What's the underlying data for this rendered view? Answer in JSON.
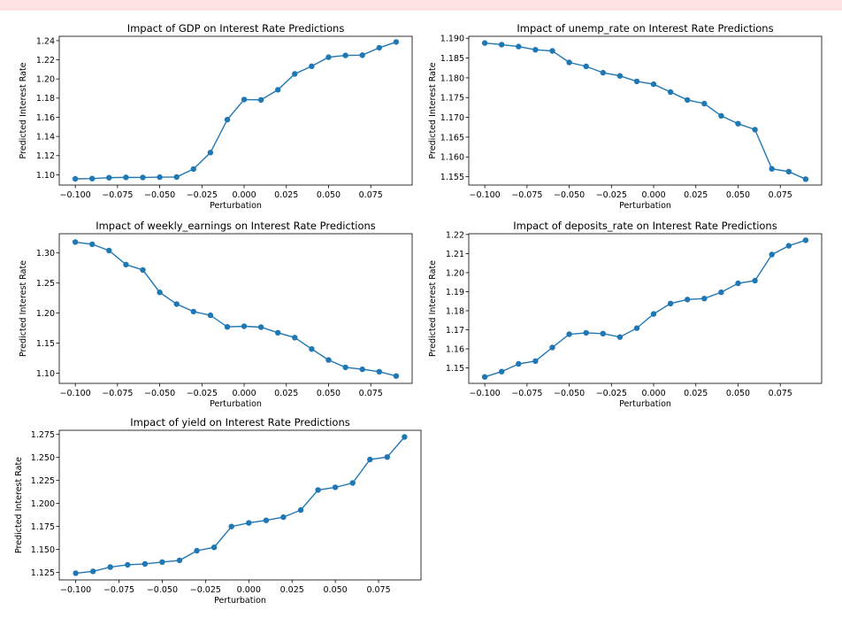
{
  "colors": {
    "line": "#1f77b4",
    "banner": "#fde2e2"
  },
  "chart_data": [
    {
      "type": "line",
      "title": "Impact of GDP on Interest Rate Predictions",
      "xlabel": "Perturbation",
      "ylabel": "Predicted Interest Rate",
      "xlim": [
        -0.1095,
        0.0995
      ],
      "ylim": [
        1.0893,
        1.2445
      ],
      "xticks": [
        "−0.100",
        "−0.075",
        "−0.050",
        "−0.025",
        "0.000",
        "0.025",
        "0.050",
        "0.075"
      ],
      "xtick_values": [
        -0.1,
        -0.075,
        -0.05,
        -0.025,
        0,
        0.025,
        0.05,
        0.075
      ],
      "yticks": [
        "1.10",
        "1.12",
        "1.14",
        "1.16",
        "1.18",
        "1.20",
        "1.22",
        "1.24"
      ],
      "ytick_values": [
        1.1,
        1.12,
        1.14,
        1.16,
        1.18,
        1.2,
        1.22,
        1.24
      ],
      "x": [
        -0.1,
        -0.09,
        -0.08,
        -0.07,
        -0.06,
        -0.05,
        -0.04,
        -0.03,
        -0.02,
        -0.01,
        0.0,
        0.01,
        0.02,
        0.03,
        0.04,
        0.05,
        0.06,
        0.07,
        0.08,
        0.09
      ],
      "y": [
        1.0958,
        1.096,
        1.097,
        1.0973,
        1.0972,
        1.0975,
        1.0977,
        1.106,
        1.1232,
        1.1576,
        1.1785,
        1.1782,
        1.1887,
        1.2052,
        1.2133,
        1.2227,
        1.2245,
        1.2248,
        1.2326,
        1.2386
      ],
      "grid": false,
      "legend": "none"
    },
    {
      "type": "line",
      "title": "Impact of unemp_rate on Interest Rate Predictions",
      "xlabel": "Perturbation",
      "ylabel": "Predicted Interest Rate",
      "xlim": [
        -0.1095,
        0.0995
      ],
      "ylim": [
        1.1529,
        1.1905
      ],
      "xticks": [
        "−0.100",
        "−0.075",
        "−0.050",
        "−0.025",
        "0.000",
        "0.025",
        "0.050",
        "0.075"
      ],
      "xtick_values": [
        -0.1,
        -0.075,
        -0.05,
        -0.025,
        0,
        0.025,
        0.05,
        0.075
      ],
      "yticks": [
        "1.155",
        "1.160",
        "1.165",
        "1.170",
        "1.175",
        "1.180",
        "1.185",
        "1.190"
      ],
      "ytick_values": [
        1.155,
        1.16,
        1.165,
        1.17,
        1.175,
        1.18,
        1.185,
        1.19
      ],
      "x": [
        -0.1,
        -0.09,
        -0.08,
        -0.07,
        -0.06,
        -0.05,
        -0.04,
        -0.03,
        -0.02,
        -0.01,
        0.0,
        0.01,
        0.02,
        0.03,
        0.04,
        0.05,
        0.06,
        0.07,
        0.08,
        0.09
      ],
      "y": [
        1.1888,
        1.1884,
        1.1879,
        1.1871,
        1.1868,
        1.1839,
        1.1829,
        1.1813,
        1.1805,
        1.1791,
        1.1784,
        1.1764,
        1.1744,
        1.1735,
        1.1704,
        1.1684,
        1.1669,
        1.157,
        1.1563,
        1.1544
      ],
      "grid": false,
      "legend": "none"
    },
    {
      "type": "line",
      "title": "Impact of weekly_earnings on Interest Rate Predictions",
      "xlabel": "Perturbation",
      "ylabel": "Predicted Interest Rate",
      "xlim": [
        -0.1095,
        0.0995
      ],
      "ylim": [
        1.083,
        1.332
      ],
      "xticks": [
        "−0.100",
        "−0.075",
        "−0.050",
        "−0.025",
        "0.000",
        "0.025",
        "0.050",
        "0.075"
      ],
      "xtick_values": [
        -0.1,
        -0.075,
        -0.05,
        -0.025,
        0,
        0.025,
        0.05,
        0.075
      ],
      "yticks": [
        "1.10",
        "1.15",
        "1.20",
        "1.25",
        "1.30"
      ],
      "ytick_values": [
        1.1,
        1.15,
        1.2,
        1.25,
        1.3
      ],
      "x": [
        -0.1,
        -0.09,
        -0.08,
        -0.07,
        -0.06,
        -0.05,
        -0.04,
        -0.03,
        -0.02,
        -0.01,
        0.0,
        0.01,
        0.02,
        0.03,
        0.04,
        0.05,
        0.06,
        0.07,
        0.08,
        0.09
      ],
      "y": [
        1.3182,
        1.3145,
        1.304,
        1.2808,
        1.2717,
        1.2345,
        1.215,
        1.2025,
        1.1963,
        1.177,
        1.1781,
        1.1765,
        1.1673,
        1.1592,
        1.1401,
        1.1219,
        1.1096,
        1.1064,
        1.1024,
        1.0952
      ],
      "grid": false,
      "legend": "none"
    },
    {
      "type": "line",
      "title": "Impact of deposits_rate on Interest Rate Predictions",
      "xlabel": "Perturbation",
      "ylabel": "Predicted Interest Rate",
      "xlim": [
        -0.1095,
        0.0995
      ],
      "ylim": [
        1.1419,
        1.2204
      ],
      "xticks": [
        "−0.100",
        "−0.075",
        "−0.050",
        "−0.025",
        "0.000",
        "0.025",
        "0.050",
        "0.075"
      ],
      "xtick_values": [
        -0.1,
        -0.075,
        -0.05,
        -0.025,
        0,
        0.025,
        0.05,
        0.075
      ],
      "yticks": [
        "1.15",
        "1.16",
        "1.17",
        "1.18",
        "1.19",
        "1.20",
        "1.21",
        "1.22"
      ],
      "ytick_values": [
        1.15,
        1.16,
        1.17,
        1.18,
        1.19,
        1.2,
        1.21,
        1.22
      ],
      "x": [
        -0.1,
        -0.09,
        -0.08,
        -0.07,
        -0.06,
        -0.05,
        -0.04,
        -0.03,
        -0.02,
        -0.01,
        0.0,
        0.01,
        0.02,
        0.03,
        0.04,
        0.05,
        0.06,
        0.07,
        0.08,
        0.09
      ],
      "y": [
        1.1453,
        1.1481,
        1.1521,
        1.1536,
        1.1607,
        1.1677,
        1.1684,
        1.168,
        1.1662,
        1.1709,
        1.1783,
        1.1838,
        1.1859,
        1.1864,
        1.1897,
        1.1944,
        1.1958,
        1.2095,
        1.2141,
        1.217
      ],
      "grid": false,
      "legend": "none"
    },
    {
      "type": "line",
      "title": "Impact of yield on Interest Rate Predictions",
      "xlabel": "Perturbation",
      "ylabel": "Predicted Interest Rate",
      "xlim": [
        -0.1095,
        0.0995
      ],
      "ylim": [
        1.1168,
        1.2795
      ],
      "xticks": [
        "−0.100",
        "−0.075",
        "−0.050",
        "−0.025",
        "0.000",
        "0.025",
        "0.050",
        "0.075"
      ],
      "xtick_values": [
        -0.1,
        -0.075,
        -0.05,
        -0.025,
        0,
        0.025,
        0.05,
        0.075
      ],
      "yticks": [
        "1.125",
        "1.150",
        "1.175",
        "1.200",
        "1.225",
        "1.250",
        "1.275"
      ],
      "ytick_values": [
        1.125,
        1.15,
        1.175,
        1.2,
        1.225,
        1.25,
        1.275
      ],
      "x": [
        -0.1,
        -0.09,
        -0.08,
        -0.07,
        -0.06,
        -0.05,
        -0.04,
        -0.03,
        -0.02,
        -0.01,
        0.0,
        0.01,
        0.02,
        0.03,
        0.04,
        0.05,
        0.06,
        0.07,
        0.08,
        0.09
      ],
      "y": [
        1.1241,
        1.1261,
        1.1308,
        1.1333,
        1.1342,
        1.1362,
        1.1381,
        1.1486,
        1.1522,
        1.1749,
        1.1788,
        1.1816,
        1.1851,
        1.1928,
        1.2146,
        1.2175,
        1.2222,
        1.2477,
        1.2504,
        1.2723
      ],
      "grid": false,
      "legend": "none"
    }
  ]
}
